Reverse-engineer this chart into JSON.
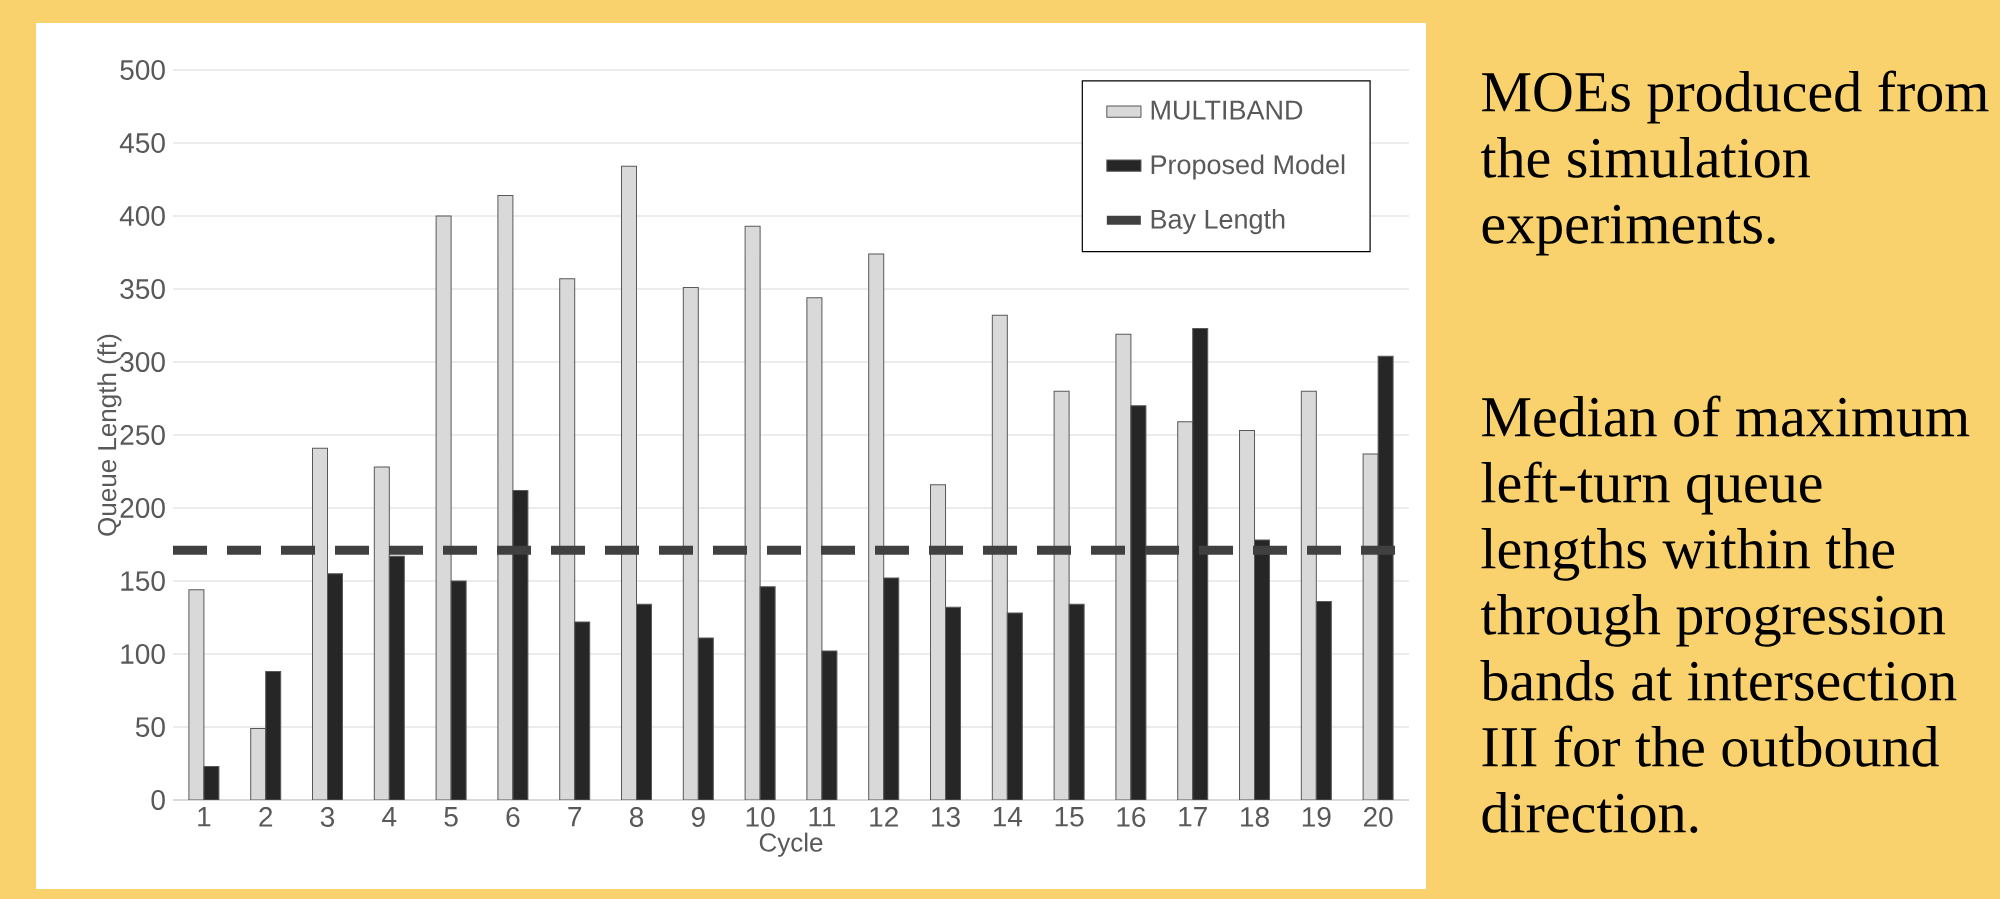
{
  "chart_data": {
    "type": "bar",
    "xlabel": "Cycle",
    "ylabel": "Queue Length (ft)",
    "categories": [
      "1",
      "2",
      "3",
      "4",
      "5",
      "6",
      "7",
      "8",
      "9",
      "10",
      "11",
      "12",
      "13",
      "14",
      "15",
      "16",
      "17",
      "18",
      "19",
      "20"
    ],
    "series": [
      {
        "name": "MULTIBAND",
        "color": "#d9d9d9",
        "values": [
          144,
          49,
          241,
          228,
          400,
          414,
          357,
          434,
          351,
          393,
          344,
          374,
          216,
          332,
          280,
          319,
          259,
          253,
          280,
          237
        ]
      },
      {
        "name": "Proposed Model",
        "color": "#262626",
        "values": [
          23,
          88,
          155,
          167,
          150,
          212,
          122,
          134,
          111,
          146,
          102,
          152,
          132,
          128,
          134,
          270,
          323,
          178,
          136,
          304
        ]
      }
    ],
    "ref_lines": [
      {
        "axis": "y",
        "value": 171,
        "label": "Bay Length",
        "color": "#404040",
        "line_style": "dashed"
      }
    ],
    "ylim": [
      0,
      500
    ],
    "yticks": [
      0,
      50,
      100,
      150,
      200,
      250,
      300,
      350,
      400,
      450,
      500
    ],
    "grid": "y",
    "legend": "top right",
    "annotations": [
      "MOEs produced from the simulation experiments.",
      "Median of maximum left-turn queue lengths within the through progression bands at intersection III for the outbound direction."
    ]
  }
}
